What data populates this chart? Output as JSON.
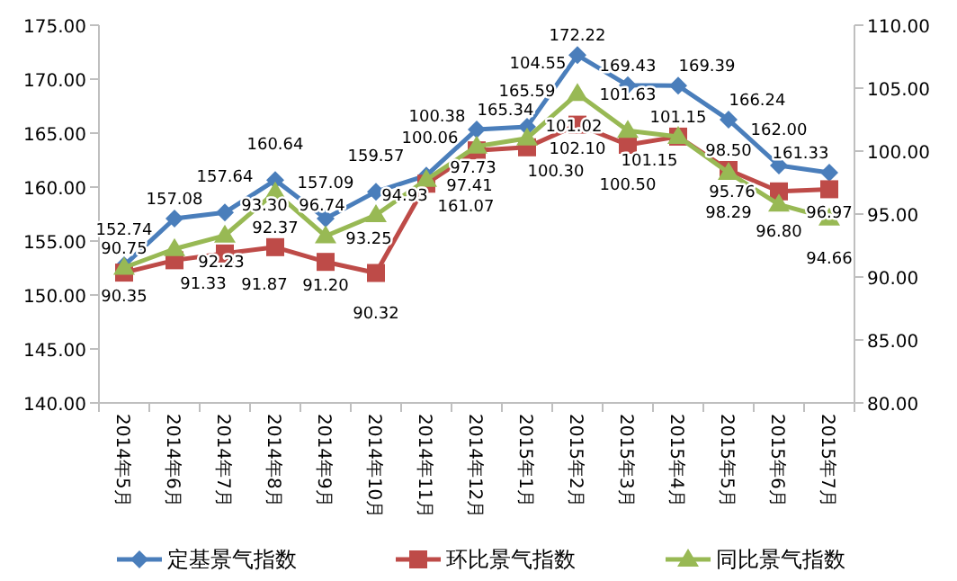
{
  "chart_data": {
    "type": "line",
    "categories": [
      "2014年5月",
      "2014年6月",
      "2014年7月",
      "2014年8月",
      "2014年9月",
      "2014年10月",
      "2014年11月",
      "2014年12月",
      "2015年1月",
      "2015年2月",
      "2015年3月",
      "2015年4月",
      "2015年5月",
      "2015年6月",
      "2015年7月"
    ],
    "series": [
      {
        "name": "定基景气指数",
        "color": "#4a7ebb",
        "marker": "diamond",
        "values": [
          152.74,
          157.08,
          157.64,
          160.64,
          157.09,
          159.57,
          161.07,
          165.34,
          165.59,
          172.22,
          169.43,
          169.39,
          166.24,
          162.0,
          161.33
        ],
        "value_labels": [
          "152.74",
          "157.08",
          "157.64",
          "160.64",
          "157.09",
          "159.57",
          "161.07",
          "165.34",
          "165.59",
          "172.22",
          "169.43",
          "169.39",
          "166.24",
          "162.00",
          "161.33"
        ]
      },
      {
        "name": "环比景气指数",
        "color": "#be4b48",
        "marker": "square",
        "axis": "y2",
        "values": [
          90.35,
          91.33,
          91.87,
          92.37,
          91.2,
          90.32,
          97.41,
          100.06,
          100.3,
          102.1,
          100.5,
          101.15,
          98.5,
          96.8,
          96.97
        ],
        "value_labels": [
          "90.35",
          "91.33",
          "91.87",
          "92.37",
          "91.20",
          "90.32",
          "97.41",
          "100.06",
          "100.30",
          "102.10",
          "100.50",
          "101.15",
          "98.50",
          "96.80",
          "96.97"
        ]
      },
      {
        "name": "同比景气指数",
        "color": "#98b954",
        "marker": "triangle",
        "axis": "y2",
        "values": [
          90.75,
          92.23,
          93.3,
          96.74,
          93.25,
          94.93,
          97.73,
          100.38,
          101.02,
          104.55,
          101.63,
          101.15,
          98.29,
          95.76,
          94.66
        ],
        "value_labels": [
          "90.75",
          "92.23",
          "93.30",
          "96.74",
          "93.25",
          "94.93",
          "97.73",
          "100.38",
          "101.02",
          "104.55",
          "101.63",
          "101.15",
          "98.29",
          "95.76",
          "94.66"
        ]
      }
    ],
    "ylim": [
      140,
      175
    ],
    "yticks": [
      {
        "value": 140,
        "label": "140.00"
      },
      {
        "value": 145,
        "label": "145.00"
      },
      {
        "value": 150,
        "label": "150.00"
      },
      {
        "value": 155,
        "label": "155.00"
      },
      {
        "value": 160,
        "label": "160.00"
      },
      {
        "value": 165,
        "label": "165.00"
      },
      {
        "value": 170,
        "label": "170.00"
      },
      {
        "value": 175,
        "label": "175.00"
      }
    ],
    "y2lim": [
      80,
      110
    ],
    "y2ticks": [
      {
        "value": 80,
        "label": "80.00"
      },
      {
        "value": 85,
        "label": "85.00"
      },
      {
        "value": 90,
        "label": "90.00"
      },
      {
        "value": 95,
        "label": "95.00"
      },
      {
        "value": 100,
        "label": "100.00"
      },
      {
        "value": 105,
        "label": "105.00"
      },
      {
        "value": 110,
        "label": "110.00"
      }
    ],
    "legend": "bottom"
  }
}
